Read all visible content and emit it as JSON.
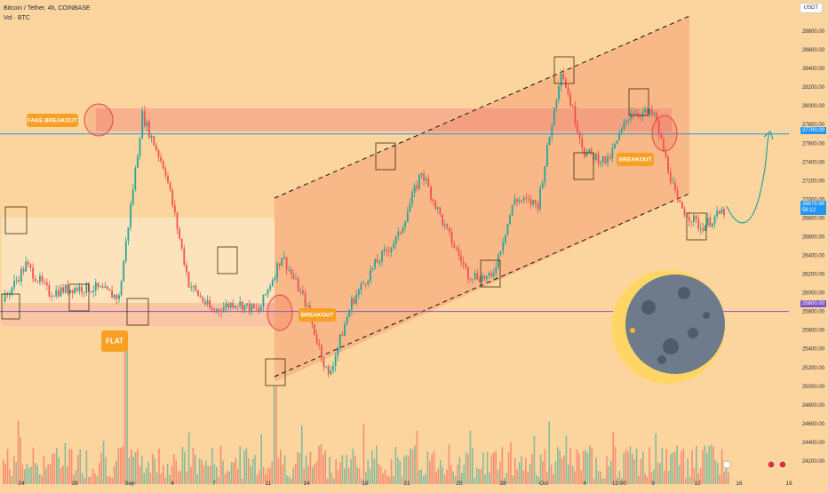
{
  "header": {
    "symbol_line": "Bitcoin / Tether, 4h, COINBASE",
    "volume_line": "Vol · BTC"
  },
  "currency_badge": "USDT",
  "price_tags": {
    "resistance": "27700.00",
    "current_price": "26875.95",
    "countdown": "58:12",
    "support": "25800.00"
  },
  "annotations": {
    "fake_breakout": "FAKE BREAKOUT",
    "breakout_lower": "BREAKOUT",
    "breakout_upper": "BREAKOUT",
    "flat": "FLAT"
  },
  "colors": {
    "background": "#fcd59e",
    "up_candle": "#26a69a",
    "down_candle": "#ef5350",
    "resistance_line": "#2196f3",
    "support_line": "#7e57c2",
    "annotation_fill": "#f7a024",
    "channel_fill": "#f5956b"
  },
  "chart_data": {
    "type": "candlestick",
    "title": "Bitcoin / Tether, 4h, COINBASE",
    "y_ticks": [
      24200,
      24400,
      24600,
      24800,
      25000,
      25200,
      25400,
      25600,
      25800,
      26000,
      26200,
      26400,
      26600,
      26800,
      27000,
      27200,
      27400,
      27600,
      27800,
      28000,
      28200,
      28400,
      28600,
      28800
    ],
    "x_ticks": [
      "24",
      "28",
      "Sep",
      "4",
      "7",
      "11",
      "14",
      "18",
      "21",
      "25",
      "28",
      "Oct",
      "4",
      "12:00",
      "9",
      "12",
      "16",
      "19"
    ],
    "ylim": [
      24150,
      28950
    ],
    "price_path": [
      {
        "d": "Aug 22",
        "p": 25900
      },
      {
        "d": "Aug 23",
        "p": 26300
      },
      {
        "d": "Aug 24",
        "p": 26000
      },
      {
        "d": "Aug 25",
        "p": 26050
      },
      {
        "d": "Aug 26",
        "p": 26050
      },
      {
        "d": "Aug 27",
        "p": 25950
      },
      {
        "d": "Aug 29 (spike)",
        "p": 27900
      },
      {
        "d": "Aug 30",
        "p": 27300
      },
      {
        "d": "Aug 31",
        "p": 26100
      },
      {
        "d": "Sep 1",
        "p": 25800
      },
      {
        "d": "Sep 3",
        "p": 25900
      },
      {
        "d": "Sep 5",
        "p": 25800
      },
      {
        "d": "Sep 8",
        "p": 26400
      },
      {
        "d": "Sep 9",
        "p": 25900
      },
      {
        "d": "Sep 11",
        "p": 25100
      },
      {
        "d": "Sep 12",
        "p": 25900
      },
      {
        "d": "Sep 14",
        "p": 26300
      },
      {
        "d": "Sep 17",
        "p": 26600
      },
      {
        "d": "Sep 19",
        "p": 27300
      },
      {
        "d": "Sep 21",
        "p": 26700
      },
      {
        "d": "Sep 24",
        "p": 26200
      },
      {
        "d": "Sep 26",
        "p": 26150
      },
      {
        "d": "Sep 28",
        "p": 27000
      },
      {
        "d": "Sep 30",
        "p": 26950
      },
      {
        "d": "Oct 2",
        "p": 28400
      },
      {
        "d": "Oct 3",
        "p": 27500
      },
      {
        "d": "Oct 5",
        "p": 27400
      },
      {
        "d": "Oct 7",
        "p": 27950
      },
      {
        "d": "Oct 9",
        "p": 27900
      },
      {
        "d": "Oct 11",
        "p": 26950
      },
      {
        "d": "Oct 12",
        "p": 26700
      },
      {
        "d": "Oct 13",
        "p": 26876
      }
    ],
    "levels": [
      {
        "name": "resistance",
        "value": 27700
      },
      {
        "name": "support",
        "value": 25800
      }
    ],
    "grid": false
  }
}
